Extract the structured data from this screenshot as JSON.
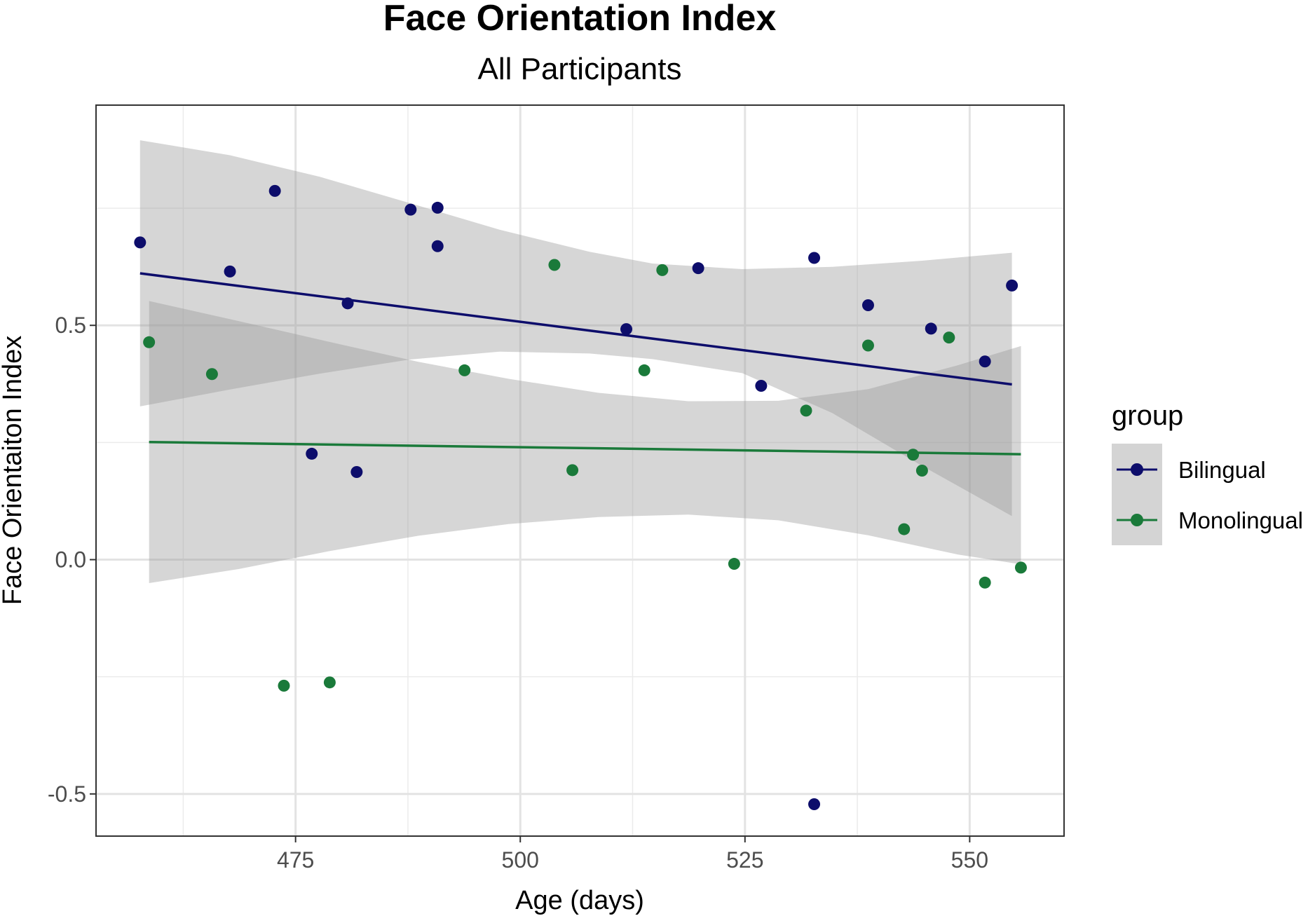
{
  "chart_data": {
    "type": "scatter",
    "title": "Face Orientation Index",
    "subtitle": "All Participants",
    "xlabel": "Age (days)",
    "ylabel": "Face Orientaiton Index",
    "xlim": [
      452.8,
      560.5
    ],
    "ylim": [
      -0.59,
      0.97
    ],
    "x_major_ticks": [
      475,
      500,
      525,
      550
    ],
    "x_minor_ticks": [
      462.5,
      487.5,
      512.5,
      537.5
    ],
    "y_major_ticks": [
      -0.5,
      0.0,
      0.5
    ],
    "y_minor_ticks": [
      -0.25,
      0.25,
      0.75
    ],
    "x_tick_labels": [
      "475",
      "500",
      "525",
      "550"
    ],
    "y_tick_labels": [
      "-0.5",
      "0.0",
      "0.5"
    ],
    "grid": true,
    "legend": {
      "title": "group",
      "position": "right",
      "entries": [
        "Bilingual",
        "Monolingual"
      ]
    },
    "colors": {
      "Bilingual": "#0d0d6b",
      "Monolingual": "#1a7a3a",
      "ribbon": "#999999"
    },
    "series": [
      {
        "name": "Bilingual",
        "points": [
          [
            457.7,
            0.677
          ],
          [
            467.7,
            0.615
          ],
          [
            472.7,
            0.787
          ],
          [
            476.8,
            0.226
          ],
          [
            480.8,
            0.547
          ],
          [
            481.8,
            0.187
          ],
          [
            487.8,
            0.747
          ],
          [
            490.8,
            0.751
          ],
          [
            490.8,
            0.669
          ],
          [
            511.8,
            0.492
          ],
          [
            519.8,
            0.622
          ],
          [
            526.8,
            0.371
          ],
          [
            532.7,
            0.644
          ],
          [
            532.7,
            -0.522
          ],
          [
            538.7,
            0.543
          ],
          [
            545.7,
            0.493
          ],
          [
            551.7,
            0.423
          ],
          [
            554.7,
            0.585
          ]
        ],
        "fit": {
          "x": [
            457.7,
            554.7
          ],
          "y": [
            0.611,
            0.374
          ]
        },
        "ci_lower": [
          [
            457.7,
            0.327
          ],
          [
            467.7,
            0.363
          ],
          [
            477.7,
            0.397
          ],
          [
            487.7,
            0.427
          ],
          [
            497.7,
            0.444
          ],
          [
            507.7,
            0.44
          ],
          [
            514.7,
            0.428
          ],
          [
            524.7,
            0.398
          ],
          [
            534.7,
            0.313
          ],
          [
            544.7,
            0.2
          ],
          [
            554.7,
            0.093
          ]
        ],
        "ci_upper": [
          [
            457.7,
            0.895
          ],
          [
            467.7,
            0.863
          ],
          [
            477.7,
            0.817
          ],
          [
            487.7,
            0.761
          ],
          [
            497.7,
            0.704
          ],
          [
            507.7,
            0.657
          ],
          [
            514.7,
            0.632
          ],
          [
            524.7,
            0.62
          ],
          [
            534.7,
            0.625
          ],
          [
            544.7,
            0.638
          ],
          [
            554.7,
            0.655
          ]
        ]
      },
      {
        "name": "Monolingual",
        "points": [
          [
            458.7,
            0.464
          ],
          [
            465.7,
            0.396
          ],
          [
            473.7,
            -0.269
          ],
          [
            478.8,
            -0.262
          ],
          [
            493.8,
            0.404
          ],
          [
            503.8,
            0.629
          ],
          [
            505.8,
            0.191
          ],
          [
            513.8,
            0.404
          ],
          [
            515.8,
            0.618
          ],
          [
            523.8,
            -0.009
          ],
          [
            531.8,
            0.318
          ],
          [
            538.7,
            0.457
          ],
          [
            542.7,
            0.065
          ],
          [
            543.7,
            0.224
          ],
          [
            544.7,
            0.19
          ],
          [
            547.7,
            0.474
          ],
          [
            551.7,
            -0.049
          ],
          [
            555.7,
            -0.017
          ]
        ],
        "fit": {
          "x": [
            458.7,
            555.7
          ],
          "y": [
            0.251,
            0.225
          ]
        },
        "ci_lower": [
          [
            458.7,
            -0.05
          ],
          [
            468.7,
            -0.02
          ],
          [
            478.7,
            0.018
          ],
          [
            488.7,
            0.051
          ],
          [
            498.7,
            0.076
          ],
          [
            508.7,
            0.091
          ],
          [
            518.7,
            0.096
          ],
          [
            528.7,
            0.084
          ],
          [
            538.7,
            0.052
          ],
          [
            548.7,
            0.011
          ],
          [
            555.7,
            -0.01
          ]
        ],
        "ci_upper": [
          [
            458.7,
            0.552
          ],
          [
            468.7,
            0.509
          ],
          [
            478.7,
            0.465
          ],
          [
            488.7,
            0.422
          ],
          [
            498.7,
            0.386
          ],
          [
            508.7,
            0.356
          ],
          [
            518.7,
            0.338
          ],
          [
            528.7,
            0.339
          ],
          [
            538.7,
            0.364
          ],
          [
            548.7,
            0.415
          ],
          [
            555.7,
            0.456
          ]
        ]
      }
    ]
  }
}
